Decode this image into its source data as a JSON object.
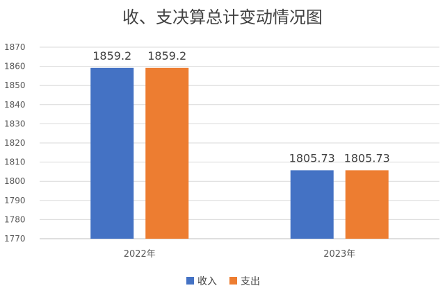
{
  "chart_data": {
    "type": "bar",
    "title": "收、支决算总计变动情况图",
    "categories": [
      "2022年",
      "2023年"
    ],
    "series": [
      {
        "name": "收入",
        "color": "#4472c4",
        "values": [
          1859.2,
          1805.73
        ],
        "labels": [
          "1859.2",
          "1805.73"
        ]
      },
      {
        "name": "支出",
        "color": "#ed7d31",
        "values": [
          1859.2,
          1805.73
        ],
        "labels": [
          "1859.2",
          "1805.73"
        ]
      }
    ],
    "xlabel": "",
    "ylabel": "",
    "ylim": [
      1770,
      1870
    ],
    "yticks": [
      1770,
      1780,
      1790,
      1800,
      1810,
      1820,
      1830,
      1840,
      1850,
      1860,
      1870
    ],
    "grid": true,
    "legend_position": "bottom"
  }
}
